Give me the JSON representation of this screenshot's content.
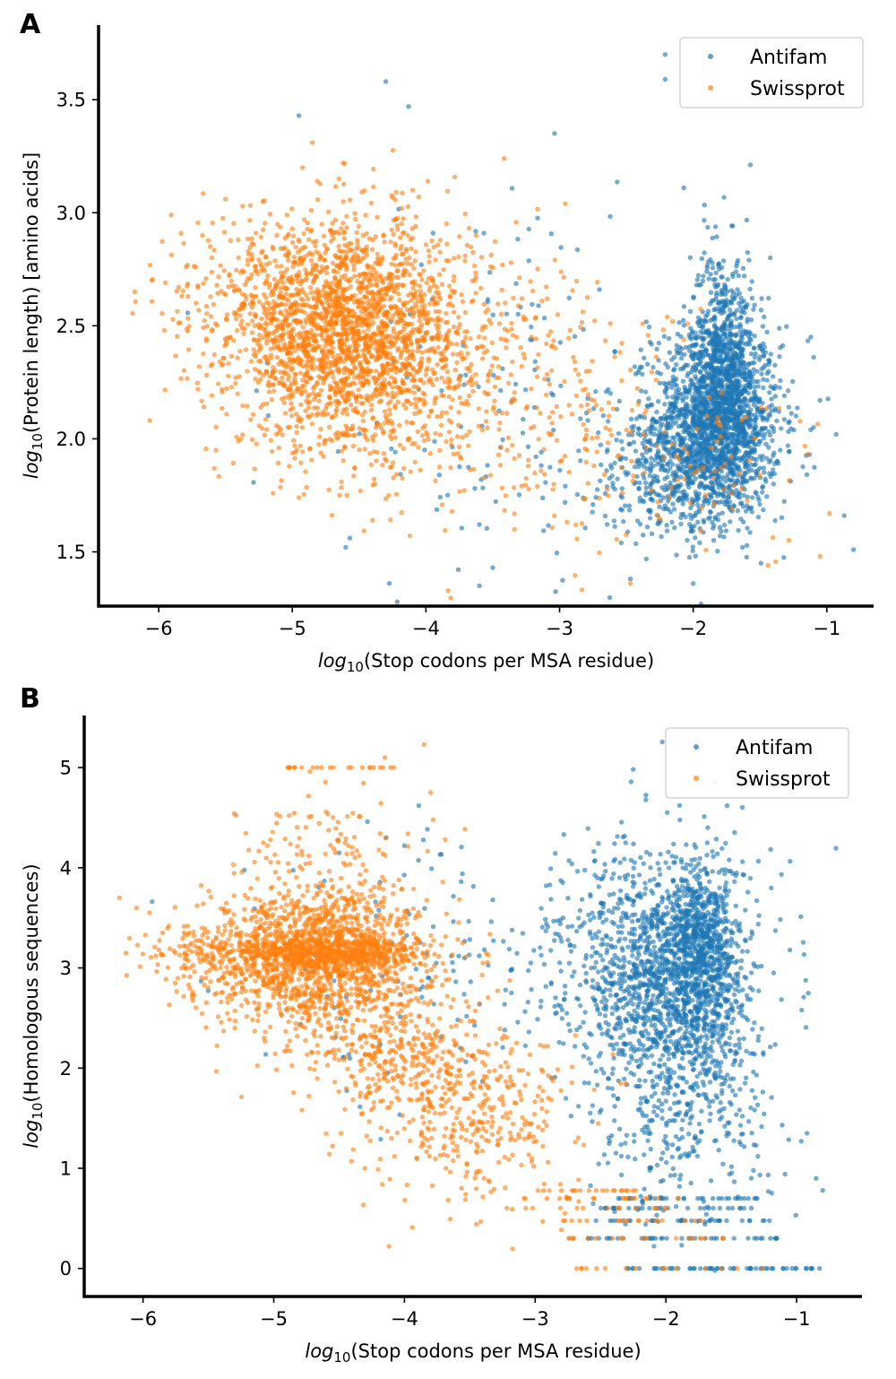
{
  "colors": {
    "antifam": "#1f77b4",
    "swissprot": "#ff7f0e"
  },
  "chart_data": [
    {
      "panel": "A",
      "type": "scatter",
      "xlabel": "log10(Stop codons per MSA residue)",
      "xlabel_parts": {
        "log": "log",
        "sub": "10",
        "rest": "(Stop codons per MSA residue)"
      },
      "ylabel": "log10(Protein length) [amino acids]",
      "ylabel_parts": {
        "log": "log",
        "sub": "10",
        "rest": "(Protein length) [amino acids]"
      },
      "xlim": [
        -6.45,
        -0.65
      ],
      "ylim": [
        1.26,
        3.83
      ],
      "xticks": [
        -6,
        -5,
        -4,
        -3,
        -2,
        -1
      ],
      "xtick_labels": [
        "−6",
        "−5",
        "−4",
        "−3",
        "−2",
        "−1"
      ],
      "yticks": [
        1.5,
        2.0,
        2.5,
        3.0,
        3.5
      ],
      "ytick_labels": [
        "1.5",
        "2.0",
        "2.5",
        "3.0",
        "3.5"
      ],
      "legend_position": "top-right",
      "series": [
        {
          "name": "Antifam",
          "color": "#1f77b4",
          "clusters": [
            {
              "n": 1500,
              "cx": -1.82,
              "cy": 2.08,
              "sx": 0.24,
              "sy": 0.21
            },
            {
              "n": 700,
              "cx": -1.78,
              "cy": 2.32,
              "sx": 0.12,
              "sy": 0.26
            },
            {
              "n": 400,
              "cx": -2.15,
              "cy": 1.85,
              "sx": 0.32,
              "sy": 0.15
            },
            {
              "n": 150,
              "cx": -3.3,
              "cy": 2.2,
              "sx": 0.9,
              "sy": 0.45
            }
          ],
          "points": [
            [
              -2.21,
              3.7
            ],
            [
              -2.21,
              3.59
            ],
            [
              -4.3,
              3.58
            ],
            [
              -4.13,
              3.47
            ],
            [
              -4.95,
              3.43
            ],
            [
              -2.07,
              3.11
            ],
            [
              -1.12,
              2.45
            ],
            [
              -0.93,
              2.02
            ],
            [
              -0.8,
              1.51
            ],
            [
              -0.87,
              1.66
            ],
            [
              -2.47,
              1.38
            ],
            [
              -2.0,
              1.36
            ],
            [
              -4.6,
              1.52
            ],
            [
              -3.5,
              1.43
            ],
            [
              -1.13,
              1.93
            ]
          ]
        },
        {
          "name": "Swissprot",
          "color": "#ff7f0e",
          "clusters": [
            {
              "n": 2200,
              "cx": -4.55,
              "cy": 2.45,
              "sx": 0.42,
              "sy": 0.25
            },
            {
              "n": 300,
              "cx": -5.2,
              "cy": 2.6,
              "sx": 0.35,
              "sy": 0.2
            },
            {
              "n": 260,
              "cx": -3.5,
              "cy": 2.3,
              "sx": 0.45,
              "sy": 0.32
            },
            {
              "n": 100,
              "cx": -2.7,
              "cy": 2.05,
              "sx": 0.35,
              "sy": 0.3
            },
            {
              "n": 60,
              "cx": -1.8,
              "cy": 1.9,
              "sx": 0.35,
              "sy": 0.2
            }
          ],
          "points": [
            [
              -6.18,
              2.65
            ],
            [
              -6.05,
              2.7
            ],
            [
              -5.95,
              2.69
            ],
            [
              -5.85,
              2.67
            ],
            [
              -5.78,
              2.63
            ],
            [
              -5.72,
              2.6
            ],
            [
              -4.85,
              3.31
            ],
            [
              -4.62,
              3.22
            ],
            [
              -4.1,
              3.1
            ],
            [
              -5.5,
              3.06
            ],
            [
              -1.05,
              1.48
            ],
            [
              -2.47,
              1.36
            ],
            [
              -4.4,
              1.64
            ],
            [
              -4.95,
              1.74
            ],
            [
              -0.98,
              1.67
            ]
          ]
        }
      ]
    },
    {
      "panel": "B",
      "type": "scatter",
      "xlabel": "log10(Stop codons per MSA residue)",
      "xlabel_parts": {
        "log": "log",
        "sub": "10",
        "rest": "(Stop codons per MSA residue)"
      },
      "ylabel": "log10(Homologous sequences)",
      "ylabel_parts": {
        "log": "log",
        "sub": "10",
        "rest": "(Homologous sequences)"
      },
      "xlim": [
        -6.45,
        -0.5
      ],
      "ylim": [
        -0.28,
        5.52
      ],
      "xticks": [
        -6,
        -5,
        -4,
        -3,
        -2,
        -1
      ],
      "xtick_labels": [
        "−6",
        "−5",
        "−4",
        "−3",
        "−2",
        "−1"
      ],
      "yticks": [
        0,
        1,
        2,
        3,
        4,
        5
      ],
      "ytick_labels": [
        "0",
        "1",
        "2",
        "3",
        "4",
        "5"
      ],
      "legend_position": "top-right",
      "series": [
        {
          "name": "Antifam",
          "color": "#1f77b4",
          "clusters": [
            {
              "n": 1400,
              "cx": -1.9,
              "cy": 2.8,
              "sx": 0.3,
              "sy": 0.65
            },
            {
              "n": 500,
              "cx": -1.72,
              "cy": 3.25,
              "sx": 0.13,
              "sy": 0.38
            },
            {
              "n": 300,
              "cx": -2.4,
              "cy": 3.0,
              "sx": 0.35,
              "sy": 0.6
            },
            {
              "n": 200,
              "cx": -1.9,
              "cy": 1.3,
              "sx": 0.35,
              "sy": 0.45
            },
            {
              "n": 150,
              "cx": -3.6,
              "cy": 3.0,
              "sx": 0.9,
              "sy": 0.7
            }
          ],
          "levels": [
            {
              "y": 0.0,
              "n": 55,
              "x0": -2.3,
              "x1": -0.8
            },
            {
              "y": 0.301,
              "n": 40,
              "x0": -2.7,
              "x1": -1.15
            },
            {
              "y": 0.477,
              "n": 30,
              "x0": -2.6,
              "x1": -1.15
            },
            {
              "y": 0.602,
              "n": 30,
              "x0": -2.5,
              "x1": -1.3
            },
            {
              "y": 0.699,
              "n": 30,
              "x0": -2.4,
              "x1": -1.3
            }
          ],
          "points": [
            [
              -1.68,
              4.4
            ],
            [
              -0.92,
              1.35
            ],
            [
              -0.8,
              0.78
            ],
            [
              -0.85,
              0.9
            ],
            [
              -4.0,
              4.22
            ]
          ]
        },
        {
          "name": "Swissprot",
          "color": "#ff7f0e",
          "clusters": [
            {
              "n": 1500,
              "cx": -4.65,
              "cy": 3.1,
              "sx": 0.38,
              "sy": 0.38
            },
            {
              "n": 500,
              "cx": -4.7,
              "cy": 3.15,
              "sx": 0.5,
              "sy": 0.07
            },
            {
              "n": 300,
              "cx": -4.0,
              "cy": 2.1,
              "sx": 0.35,
              "sy": 0.3
            },
            {
              "n": 350,
              "cx": -3.5,
              "cy": 1.5,
              "sx": 0.45,
              "sy": 0.45
            },
            {
              "n": 150,
              "cx": -5.4,
              "cy": 3.1,
              "sx": 0.3,
              "sy": 0.25
            },
            {
              "n": 80,
              "cx": -4.6,
              "cy": 4.2,
              "sx": 0.4,
              "sy": 0.3
            }
          ],
          "levels": [
            {
              "y": 5.0,
              "n": 22,
              "x0": -4.9,
              "x1": -4.0
            },
            {
              "y": 0.0,
              "n": 15,
              "x0": -2.7,
              "x1": -1.0
            },
            {
              "y": 0.301,
              "n": 20,
              "x0": -2.8,
              "x1": -1.5
            },
            {
              "y": 0.477,
              "n": 18,
              "x0": -2.8,
              "x1": -1.6
            },
            {
              "y": 0.602,
              "n": 15,
              "x0": -3.3,
              "x1": -1.8
            },
            {
              "y": 0.699,
              "n": 18,
              "x0": -3.1,
              "x1": -1.9
            },
            {
              "y": 0.778,
              "n": 20,
              "x0": -3.1,
              "x1": -2.2
            }
          ],
          "points": [
            [
              -6.18,
              3.7
            ],
            [
              -6.05,
              3.6
            ],
            [
              -5.95,
              3.55
            ],
            [
              -5.85,
              3.35
            ],
            [
              -3.85,
              5.23
            ],
            [
              -3.8,
              4.75
            ],
            [
              -3.78,
              4.48
            ],
            [
              -4.15,
              5.1
            ],
            [
              -5.08,
              4.25
            ],
            [
              -4.1,
              1.3
            ]
          ]
        }
      ]
    }
  ]
}
